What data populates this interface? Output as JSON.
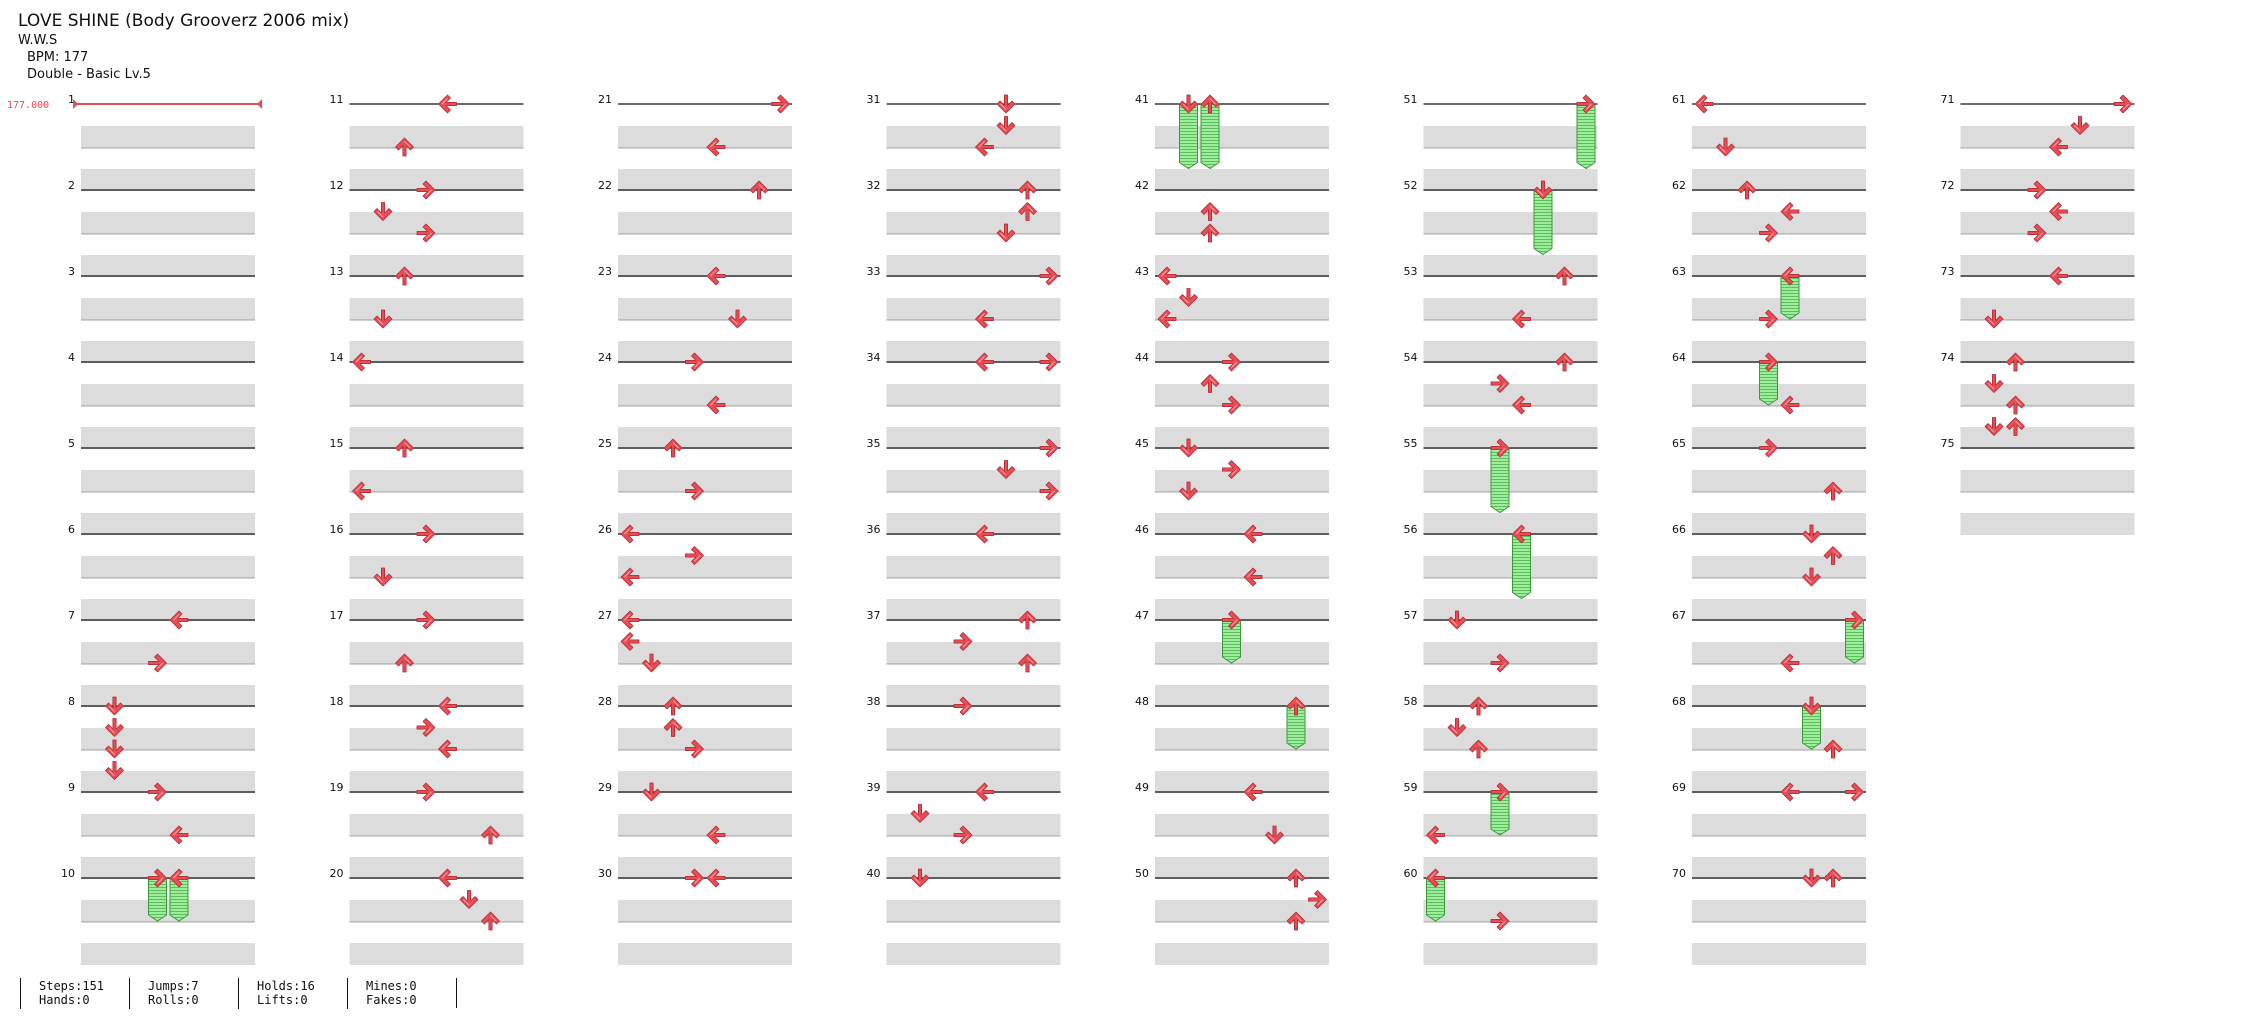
{
  "song": {
    "title": "LOVE SHINE (Body Grooverz 2006 mix)",
    "artist": "W.W.S",
    "bpm_line": "BPM: 177",
    "difficulty_line": "Double - Basic Lv.5"
  },
  "bpm_marker": "177.000",
  "stats": [
    {
      "top": "Steps:151",
      "bottom": "Hands:0"
    },
    {
      "top": "Jumps:7",
      "bottom": "Rolls:0"
    },
    {
      "top": "Holds:16",
      "bottom": "Lifts:0"
    },
    {
      "top": "Mines:0",
      "bottom": "Fakes:0"
    }
  ],
  "colors": {
    "arrow": "#e84c55",
    "hold": "#8ee68e",
    "beat_band": "#dcdcdc",
    "background": "#ffffff"
  },
  "chart_data": {
    "type": "table",
    "mode": "Double",
    "columns": [
      "P1-Left",
      "P1-Down",
      "P1-Up",
      "P1-Right",
      "P2-Left",
      "P2-Down",
      "P2-Up",
      "P2-Right"
    ],
    "arrow_glyphs": {
      "L": "left-arrow",
      "D": "down-arrow",
      "U": "up-arrow",
      "R": "right-arrow"
    },
    "measure_count": 75,
    "beats_per_measure": 4,
    "notes": [
      {
        "m": 7,
        "b": 0,
        "c": 4
      },
      {
        "m": 7,
        "b": 1,
        "c": 3
      },
      {
        "m": 8,
        "b": 0,
        "c": 1
      },
      {
        "m": 8,
        "b": 0.5,
        "c": 1
      },
      {
        "m": 8,
        "b": 1,
        "c": 1
      },
      {
        "m": 8,
        "b": 1.5,
        "c": 1
      },
      {
        "m": 9,
        "b": 0,
        "c": 3
      },
      {
        "m": 9,
        "b": 1,
        "c": 4
      },
      {
        "m": 10,
        "b": 0,
        "c": 3,
        "hold": 1
      },
      {
        "m": 10,
        "b": 0,
        "c": 4,
        "hold": 1
      },
      {
        "m": 11,
        "b": 0,
        "c": 4
      },
      {
        "m": 11,
        "b": 1,
        "c": 2
      },
      {
        "m": 12,
        "b": 0,
        "c": 3
      },
      {
        "m": 12,
        "b": 0.5,
        "c": 1
      },
      {
        "m": 12,
        "b": 1,
        "c": 3
      },
      {
        "m": 13,
        "b": 0,
        "c": 2
      },
      {
        "m": 13,
        "b": 1,
        "c": 1
      },
      {
        "m": 14,
        "b": 0,
        "c": 0
      },
      {
        "m": 15,
        "b": 0,
        "c": 2
      },
      {
        "m": 15,
        "b": 1,
        "c": 0
      },
      {
        "m": 16,
        "b": 0,
        "c": 3
      },
      {
        "m": 16,
        "b": 1,
        "c": 1
      },
      {
        "m": 17,
        "b": 0,
        "c": 3
      },
      {
        "m": 17,
        "b": 1,
        "c": 2
      },
      {
        "m": 18,
        "b": 0,
        "c": 4
      },
      {
        "m": 18,
        "b": 0.5,
        "c": 3
      },
      {
        "m": 18,
        "b": 1,
        "c": 4
      },
      {
        "m": 19,
        "b": 0,
        "c": 3
      },
      {
        "m": 19,
        "b": 1,
        "c": 6
      },
      {
        "m": 20,
        "b": 0,
        "c": 4
      },
      {
        "m": 20,
        "b": 0.5,
        "c": 5
      },
      {
        "m": 20,
        "b": 1,
        "c": 6
      },
      {
        "m": 21,
        "b": 0,
        "c": 7
      },
      {
        "m": 21,
        "b": 1,
        "c": 4
      },
      {
        "m": 22,
        "b": 0,
        "c": 6
      },
      {
        "m": 23,
        "b": 0,
        "c": 4
      },
      {
        "m": 23,
        "b": 1,
        "c": 5
      },
      {
        "m": 24,
        "b": 0,
        "c": 3
      },
      {
        "m": 24,
        "b": 1,
        "c": 4
      },
      {
        "m": 25,
        "b": 0,
        "c": 2
      },
      {
        "m": 25,
        "b": 1,
        "c": 3
      },
      {
        "m": 26,
        "b": 0,
        "c": 0
      },
      {
        "m": 26,
        "b": 0.5,
        "c": 3
      },
      {
        "m": 26,
        "b": 1,
        "c": 0
      },
      {
        "m": 27,
        "b": 0,
        "c": 0
      },
      {
        "m": 27,
        "b": 0.5,
        "c": 0
      },
      {
        "m": 27,
        "b": 1,
        "c": 1
      },
      {
        "m": 28,
        "b": 0,
        "c": 2
      },
      {
        "m": 28,
        "b": 0.5,
        "c": 2
      },
      {
        "m": 28,
        "b": 1,
        "c": 3
      },
      {
        "m": 29,
        "b": 0,
        "c": 1
      },
      {
        "m": 29,
        "b": 1,
        "c": 4
      },
      {
        "m": 30,
        "b": 0,
        "c": 3
      },
      {
        "m": 30,
        "b": 0,
        "c": 4
      },
      {
        "m": 31,
        "b": 0,
        "c": 5
      },
      {
        "m": 31,
        "b": 0.5,
        "c": 5
      },
      {
        "m": 31,
        "b": 1,
        "c": 4
      },
      {
        "m": 32,
        "b": 0,
        "c": 6
      },
      {
        "m": 32,
        "b": 0.5,
        "c": 6
      },
      {
        "m": 32,
        "b": 1,
        "c": 5
      },
      {
        "m": 33,
        "b": 0,
        "c": 7
      },
      {
        "m": 33,
        "b": 1,
        "c": 4
      },
      {
        "m": 34,
        "b": 0,
        "c": 4
      },
      {
        "m": 34,
        "b": 0,
        "c": 7
      },
      {
        "m": 35,
        "b": 0,
        "c": 7
      },
      {
        "m": 35,
        "b": 0.5,
        "c": 5
      },
      {
        "m": 35,
        "b": 1,
        "c": 7
      },
      {
        "m": 36,
        "b": 0,
        "c": 4
      },
      {
        "m": 37,
        "b": 0,
        "c": 6
      },
      {
        "m": 37,
        "b": 0.5,
        "c": 3
      },
      {
        "m": 37,
        "b": 1,
        "c": 6
      },
      {
        "m": 38,
        "b": 0,
        "c": 3
      },
      {
        "m": 39,
        "b": 0,
        "c": 4
      },
      {
        "m": 39,
        "b": 0.5,
        "c": 1
      },
      {
        "m": 39,
        "b": 1,
        "c": 3
      },
      {
        "m": 40,
        "b": 0,
        "c": 1
      },
      {
        "m": 41,
        "b": 0,
        "c": 1,
        "hold": 1.5
      },
      {
        "m": 41,
        "b": 0,
        "c": 2,
        "hold": 1.5
      },
      {
        "m": 42,
        "b": 0.5,
        "c": 2
      },
      {
        "m": 42,
        "b": 1,
        "c": 2
      },
      {
        "m": 43,
        "b": 0,
        "c": 0
      },
      {
        "m": 43,
        "b": 0.5,
        "c": 1
      },
      {
        "m": 43,
        "b": 1,
        "c": 0
      },
      {
        "m": 44,
        "b": 0,
        "c": 3
      },
      {
        "m": 44,
        "b": 0.5,
        "c": 2
      },
      {
        "m": 44,
        "b": 1,
        "c": 3
      },
      {
        "m": 45,
        "b": 0,
        "c": 1
      },
      {
        "m": 45,
        "b": 0.5,
        "c": 3
      },
      {
        "m": 45,
        "b": 1,
        "c": 1
      },
      {
        "m": 46,
        "b": 0,
        "c": 4
      },
      {
        "m": 46,
        "b": 1,
        "c": 4
      },
      {
        "m": 47,
        "b": 0,
        "c": 3,
        "hold": 1
      },
      {
        "m": 48,
        "b": 0,
        "c": 6,
        "hold": 1
      },
      {
        "m": 49,
        "b": 0,
        "c": 4
      },
      {
        "m": 49,
        "b": 1,
        "c": 5
      },
      {
        "m": 50,
        "b": 0,
        "c": 6
      },
      {
        "m": 50,
        "b": 0.5,
        "c": 7
      },
      {
        "m": 50,
        "b": 1,
        "c": 6
      },
      {
        "m": 51,
        "b": 0,
        "c": 7,
        "hold": 1.5
      },
      {
        "m": 52,
        "b": 0,
        "c": 5,
        "hold": 1.5
      },
      {
        "m": 53,
        "b": 0,
        "c": 6
      },
      {
        "m": 53,
        "b": 1,
        "c": 4
      },
      {
        "m": 54,
        "b": 0,
        "c": 6
      },
      {
        "m": 54,
        "b": 0.5,
        "c": 3
      },
      {
        "m": 54,
        "b": 1,
        "c": 4
      },
      {
        "m": 55,
        "b": 0,
        "c": 3,
        "hold": 1.5
      },
      {
        "m": 56,
        "b": 0,
        "c": 4,
        "hold": 1.5
      },
      {
        "m": 57,
        "b": 0,
        "c": 1
      },
      {
        "m": 57,
        "b": 1,
        "c": 3
      },
      {
        "m": 58,
        "b": 0,
        "c": 2
      },
      {
        "m": 58,
        "b": 0.5,
        "c": 1
      },
      {
        "m": 58,
        "b": 1,
        "c": 2
      },
      {
        "m": 59,
        "b": 0,
        "c": 3,
        "hold": 1
      },
      {
        "m": 59,
        "b": 1,
        "c": 0
      },
      {
        "m": 60,
        "b": 0,
        "c": 0,
        "hold": 1
      },
      {
        "m": 60,
        "b": 1,
        "c": 3
      },
      {
        "m": 61,
        "b": 0,
        "c": 0
      },
      {
        "m": 61,
        "b": 1,
        "c": 1
      },
      {
        "m": 62,
        "b": 0,
        "c": 2
      },
      {
        "m": 62,
        "b": 0.5,
        "c": 4
      },
      {
        "m": 62,
        "b": 1,
        "c": 3
      },
      {
        "m": 63,
        "b": 0,
        "c": 4,
        "hold": 1
      },
      {
        "m": 63,
        "b": 1,
        "c": 3
      },
      {
        "m": 64,
        "b": 0,
        "c": 3,
        "hold": 1
      },
      {
        "m": 64,
        "b": 1,
        "c": 4
      },
      {
        "m": 65,
        "b": 0,
        "c": 3
      },
      {
        "m": 65,
        "b": 1,
        "c": 6
      },
      {
        "m": 66,
        "b": 0,
        "c": 5
      },
      {
        "m": 66,
        "b": 0.5,
        "c": 6
      },
      {
        "m": 66,
        "b": 1,
        "c": 5
      },
      {
        "m": 67,
        "b": 0,
        "c": 7,
        "hold": 1
      },
      {
        "m": 67,
        "b": 1,
        "c": 4
      },
      {
        "m": 68,
        "b": 0,
        "c": 5,
        "hold": 1
      },
      {
        "m": 68,
        "b": 1,
        "c": 6
      },
      {
        "m": 69,
        "b": 0,
        "c": 4
      },
      {
        "m": 69,
        "b": 0,
        "c": 7
      },
      {
        "m": 70,
        "b": 0,
        "c": 5
      },
      {
        "m": 70,
        "b": 0,
        "c": 6
      },
      {
        "m": 71,
        "b": 0,
        "c": 7
      },
      {
        "m": 71,
        "b": 0.5,
        "c": 5
      },
      {
        "m": 71,
        "b": 1,
        "c": 4
      },
      {
        "m": 72,
        "b": 0,
        "c": 3
      },
      {
        "m": 72,
        "b": 0.5,
        "c": 4
      },
      {
        "m": 72,
        "b": 1,
        "c": 3
      },
      {
        "m": 73,
        "b": 0,
        "c": 4
      },
      {
        "m": 73,
        "b": 1,
        "c": 1
      },
      {
        "m": 74,
        "b": 0,
        "c": 2
      },
      {
        "m": 74,
        "b": 0.5,
        "c": 1
      },
      {
        "m": 74,
        "b": 1,
        "c": 2
      },
      {
        "m": 74,
        "b": 1.5,
        "c": 1
      },
      {
        "m": 74,
        "b": 1.5,
        "c": 2
      }
    ]
  }
}
